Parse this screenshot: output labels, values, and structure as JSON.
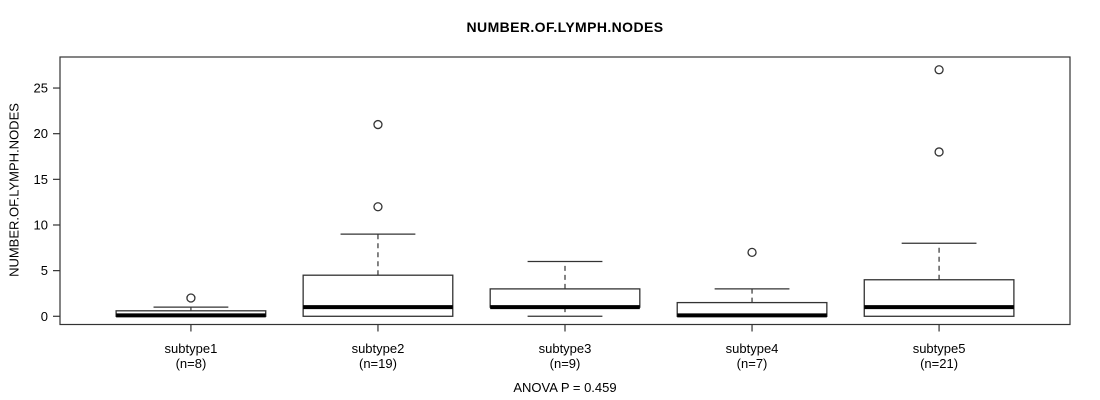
{
  "chart_data": {
    "type": "boxplot",
    "title": "NUMBER.OF.LYMPH.NODES",
    "ylabel": "NUMBER.OF.LYMPH.NODES",
    "annotation": "ANOVA P = 0.459",
    "yticks": [
      0,
      5,
      10,
      15,
      20,
      25
    ],
    "ylim": [
      -0.9,
      28.4
    ],
    "grid": false,
    "frame": true,
    "legend": null,
    "groups": [
      {
        "label": "subtype1",
        "sublabel": "(n=8)",
        "n": 8,
        "whisker_low": 0,
        "q1": 0,
        "median": 0.1,
        "q3": 0.6,
        "whisker_high": 1,
        "outliers": [
          2
        ]
      },
      {
        "label": "subtype2",
        "sublabel": "(n=19)",
        "n": 19,
        "whisker_low": 0,
        "q1": 0,
        "median": 1,
        "q3": 4.5,
        "whisker_high": 9,
        "outliers": [
          12,
          21
        ]
      },
      {
        "label": "subtype3",
        "sublabel": "(n=9)",
        "n": 9,
        "whisker_low": 0,
        "q1": 1,
        "median": 1,
        "q3": 3,
        "whisker_high": 6,
        "outliers": []
      },
      {
        "label": "subtype4",
        "sublabel": "(n=7)",
        "n": 7,
        "whisker_low": 0,
        "q1": 0,
        "median": 0.1,
        "q3": 1.5,
        "whisker_high": 3,
        "outliers": [
          7
        ]
      },
      {
        "label": "subtype5",
        "sublabel": "(n=21)",
        "n": 21,
        "whisker_low": 0,
        "q1": 0,
        "median": 1,
        "q3": 4,
        "whisker_high": 8,
        "outliers": [
          18,
          27
        ]
      }
    ],
    "colors": {
      "stroke": "#333333",
      "median": "#000000",
      "box_fill": "#ffffff",
      "background": "#ffffff",
      "text": "#000000"
    }
  }
}
